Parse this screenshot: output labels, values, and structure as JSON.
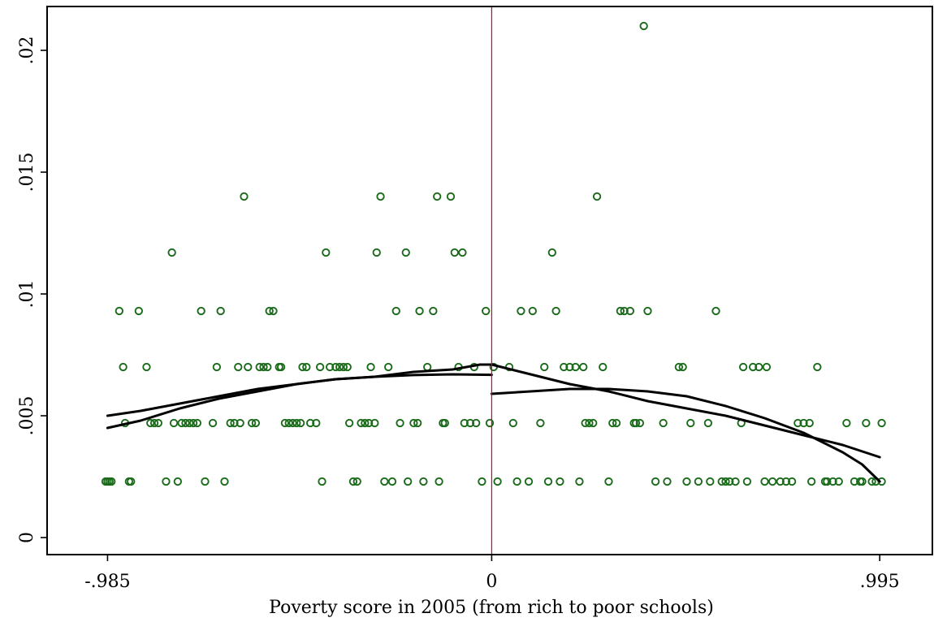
{
  "chart_data": {
    "type": "scatter",
    "title": "",
    "xlabel": "Poverty score in 2005 (from rich to poor schools)",
    "ylabel": "",
    "xlim": [
      -1.14,
      1.13
    ],
    "ylim": [
      -0.0007,
      0.0218
    ],
    "x_ticks": [
      -0.985,
      0,
      0.995
    ],
    "x_tick_labels": [
      "-.985",
      "0",
      ".995"
    ],
    "y_ticks": [
      0,
      0.005,
      0.01,
      0.015,
      0.02
    ],
    "y_tick_labels": [
      "0",
      ".005",
      ".01",
      ".015",
      ".02"
    ],
    "grid": false,
    "legend": "none",
    "cutoff_x": 0,
    "colors": {
      "points": "#1a6b1a",
      "cutoff": "#cc0033",
      "fit": "#000000"
    },
    "points": [
      [
        -0.99,
        0.0023
      ],
      [
        -0.985,
        0.0023
      ],
      [
        -0.98,
        0.0023
      ],
      [
        -0.975,
        0.0023
      ],
      [
        -0.955,
        0.0093
      ],
      [
        -0.945,
        0.007
      ],
      [
        -0.94,
        0.0047
      ],
      [
        -0.93,
        0.0023
      ],
      [
        -0.925,
        0.0023
      ],
      [
        -0.905,
        0.0093
      ],
      [
        -0.885,
        0.007
      ],
      [
        -0.875,
        0.0047
      ],
      [
        -0.865,
        0.0047
      ],
      [
        -0.855,
        0.0047
      ],
      [
        -0.835,
        0.0023
      ],
      [
        -0.82,
        0.0117
      ],
      [
        -0.815,
        0.0047
      ],
      [
        -0.805,
        0.0023
      ],
      [
        -0.795,
        0.0047
      ],
      [
        -0.785,
        0.0047
      ],
      [
        -0.775,
        0.0047
      ],
      [
        -0.765,
        0.0047
      ],
      [
        -0.755,
        0.0047
      ],
      [
        -0.745,
        0.0093
      ],
      [
        -0.735,
        0.0023
      ],
      [
        -0.715,
        0.0047
      ],
      [
        -0.705,
        0.007
      ],
      [
        -0.695,
        0.0093
      ],
      [
        -0.685,
        0.0023
      ],
      [
        -0.67,
        0.0047
      ],
      [
        -0.66,
        0.0047
      ],
      [
        -0.645,
        0.0047
      ],
      [
        -0.65,
        0.007
      ],
      [
        -0.635,
        0.014
      ],
      [
        -0.625,
        0.007
      ],
      [
        -0.615,
        0.0047
      ],
      [
        -0.605,
        0.0047
      ],
      [
        -0.595,
        0.007
      ],
      [
        -0.585,
        0.007
      ],
      [
        -0.575,
        0.007
      ],
      [
        -0.57,
        0.0093
      ],
      [
        -0.56,
        0.0093
      ],
      [
        -0.545,
        0.007
      ],
      [
        -0.54,
        0.007
      ],
      [
        -0.53,
        0.0047
      ],
      [
        -0.52,
        0.0047
      ],
      [
        -0.51,
        0.0047
      ],
      [
        -0.5,
        0.0047
      ],
      [
        -0.49,
        0.0047
      ],
      [
        -0.485,
        0.007
      ],
      [
        -0.475,
        0.007
      ],
      [
        -0.465,
        0.0047
      ],
      [
        -0.45,
        0.0047
      ],
      [
        -0.44,
        0.007
      ],
      [
        -0.435,
        0.0023
      ],
      [
        -0.425,
        0.0117
      ],
      [
        -0.415,
        0.007
      ],
      [
        -0.4,
        0.007
      ],
      [
        -0.39,
        0.007
      ],
      [
        -0.38,
        0.007
      ],
      [
        -0.37,
        0.007
      ],
      [
        -0.365,
        0.0047
      ],
      [
        -0.355,
        0.0023
      ],
      [
        -0.345,
        0.0023
      ],
      [
        -0.335,
        0.0047
      ],
      [
        -0.325,
        0.0047
      ],
      [
        -0.315,
        0.0047
      ],
      [
        -0.31,
        0.007
      ],
      [
        -0.3,
        0.0047
      ],
      [
        -0.295,
        0.0117
      ],
      [
        -0.285,
        0.014
      ],
      [
        -0.275,
        0.0023
      ],
      [
        -0.265,
        0.007
      ],
      [
        -0.255,
        0.0023
      ],
      [
        -0.245,
        0.0093
      ],
      [
        -0.235,
        0.0047
      ],
      [
        -0.22,
        0.0117
      ],
      [
        -0.215,
        0.0023
      ],
      [
        -0.2,
        0.0047
      ],
      [
        -0.19,
        0.0047
      ],
      [
        -0.185,
        0.0093
      ],
      [
        -0.175,
        0.0023
      ],
      [
        -0.165,
        0.007
      ],
      [
        -0.15,
        0.0093
      ],
      [
        -0.14,
        0.014
      ],
      [
        -0.135,
        0.0023
      ],
      [
        -0.125,
        0.0047
      ],
      [
        -0.12,
        0.0047
      ],
      [
        -0.105,
        0.014
      ],
      [
        -0.095,
        0.0117
      ],
      [
        -0.085,
        0.007
      ],
      [
        -0.075,
        0.0117
      ],
      [
        -0.07,
        0.0047
      ],
      [
        -0.055,
        0.0047
      ],
      [
        -0.045,
        0.007
      ],
      [
        -0.04,
        0.0047
      ],
      [
        -0.025,
        0.0023
      ],
      [
        -0.015,
        0.0093
      ],
      [
        -0.005,
        0.0047
      ],
      [
        0.005,
        0.007
      ],
      [
        0.015,
        0.0023
      ],
      [
        0.045,
        0.007
      ],
      [
        0.055,
        0.0047
      ],
      [
        0.065,
        0.0023
      ],
      [
        0.075,
        0.0093
      ],
      [
        0.095,
        0.0023
      ],
      [
        0.105,
        0.0093
      ],
      [
        0.125,
        0.0047
      ],
      [
        0.135,
        0.007
      ],
      [
        0.145,
        0.0023
      ],
      [
        0.155,
        0.0117
      ],
      [
        0.165,
        0.0093
      ],
      [
        0.175,
        0.0023
      ],
      [
        0.185,
        0.007
      ],
      [
        0.2,
        0.007
      ],
      [
        0.215,
        0.007
      ],
      [
        0.225,
        0.0023
      ],
      [
        0.235,
        0.007
      ],
      [
        0.24,
        0.0047
      ],
      [
        0.25,
        0.0047
      ],
      [
        0.26,
        0.0047
      ],
      [
        0.27,
        0.014
      ],
      [
        0.285,
        0.007
      ],
      [
        0.3,
        0.0023
      ],
      [
        0.31,
        0.0047
      ],
      [
        0.32,
        0.0047
      ],
      [
        0.33,
        0.0093
      ],
      [
        0.34,
        0.0093
      ],
      [
        0.355,
        0.0093
      ],
      [
        0.365,
        0.0047
      ],
      [
        0.37,
        0.0047
      ],
      [
        0.38,
        0.0047
      ],
      [
        0.39,
        0.021
      ],
      [
        0.4,
        0.0093
      ],
      [
        0.42,
        0.0023
      ],
      [
        0.44,
        0.0047
      ],
      [
        0.45,
        0.0023
      ],
      [
        0.48,
        0.007
      ],
      [
        0.49,
        0.007
      ],
      [
        0.5,
        0.0023
      ],
      [
        0.51,
        0.0047
      ],
      [
        0.53,
        0.0023
      ],
      [
        0.555,
        0.0047
      ],
      [
        0.56,
        0.0023
      ],
      [
        0.575,
        0.0093
      ],
      [
        0.59,
        0.0023
      ],
      [
        0.6,
        0.0023
      ],
      [
        0.61,
        0.0023
      ],
      [
        0.625,
        0.0023
      ],
      [
        0.64,
        0.0047
      ],
      [
        0.645,
        0.007
      ],
      [
        0.655,
        0.0023
      ],
      [
        0.67,
        0.007
      ],
      [
        0.685,
        0.007
      ],
      [
        0.7,
        0.0023
      ],
      [
        0.705,
        0.007
      ],
      [
        0.72,
        0.0023
      ],
      [
        0.74,
        0.0023
      ],
      [
        0.755,
        0.0023
      ],
      [
        0.77,
        0.0023
      ],
      [
        0.785,
        0.0047
      ],
      [
        0.8,
        0.0047
      ],
      [
        0.815,
        0.0047
      ],
      [
        0.82,
        0.0023
      ],
      [
        0.835,
        0.007
      ],
      [
        0.855,
        0.0023
      ],
      [
        0.86,
        0.0023
      ],
      [
        0.875,
        0.0023
      ],
      [
        0.89,
        0.0023
      ],
      [
        0.91,
        0.0047
      ],
      [
        0.93,
        0.0023
      ],
      [
        0.945,
        0.0023
      ],
      [
        0.95,
        0.0023
      ],
      [
        0.96,
        0.0047
      ],
      [
        0.975,
        0.0023
      ],
      [
        0.985,
        0.0023
      ],
      [
        1.0,
        0.0023
      ],
      [
        1.0,
        0.0047
      ]
    ],
    "fits": [
      {
        "segment": "left",
        "values": [
          [
            -0.985,
            0.0045
          ],
          [
            -0.9,
            0.0048
          ],
          [
            -0.8,
            0.0053
          ],
          [
            -0.7,
            0.0057
          ],
          [
            -0.6,
            0.006
          ],
          [
            -0.5,
            0.0063
          ],
          [
            -0.4,
            0.0065
          ],
          [
            -0.3,
            0.0066
          ],
          [
            -0.2,
            0.00667
          ],
          [
            -0.1,
            0.0067
          ],
          [
            0,
            0.00668
          ]
        ]
      },
      {
        "segment": "left",
        "values": [
          [
            -0.985,
            0.005
          ],
          [
            -0.9,
            0.0052
          ],
          [
            -0.8,
            0.0055
          ],
          [
            -0.7,
            0.0058
          ],
          [
            -0.6,
            0.0061
          ],
          [
            -0.5,
            0.0063
          ],
          [
            -0.4,
            0.0065
          ],
          [
            -0.3,
            0.0066
          ],
          [
            -0.2,
            0.0068
          ],
          [
            -0.1,
            0.0069
          ],
          [
            -0.03,
            0.0071
          ],
          [
            0,
            0.0071
          ]
        ]
      },
      {
        "segment": "right",
        "values": [
          [
            0,
            0.0059
          ],
          [
            0.1,
            0.006
          ],
          [
            0.2,
            0.0061
          ],
          [
            0.3,
            0.0061
          ],
          [
            0.4,
            0.006
          ],
          [
            0.5,
            0.0058
          ],
          [
            0.6,
            0.0054
          ],
          [
            0.7,
            0.0049
          ],
          [
            0.8,
            0.0043
          ],
          [
            0.9,
            0.0035
          ],
          [
            0.95,
            0.003
          ],
          [
            0.995,
            0.0023
          ]
        ]
      },
      {
        "segment": "right",
        "values": [
          [
            0,
            0.0071
          ],
          [
            0.1,
            0.0067
          ],
          [
            0.2,
            0.0063
          ],
          [
            0.3,
            0.006
          ],
          [
            0.4,
            0.0056
          ],
          [
            0.5,
            0.0053
          ],
          [
            0.6,
            0.005
          ],
          [
            0.7,
            0.0046
          ],
          [
            0.8,
            0.0042
          ],
          [
            0.9,
            0.0038
          ],
          [
            0.995,
            0.0033
          ]
        ]
      }
    ]
  }
}
